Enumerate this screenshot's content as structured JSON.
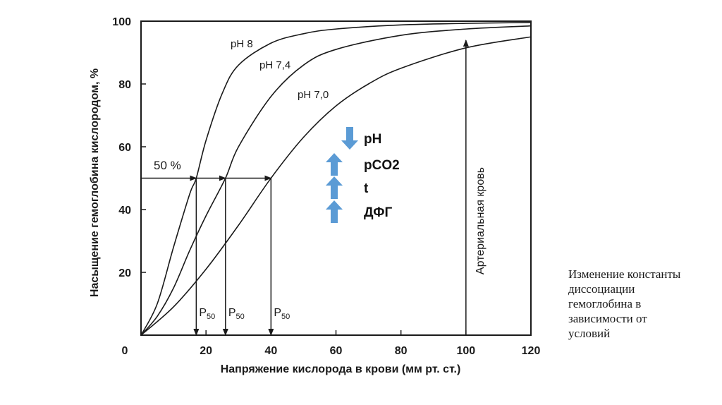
{
  "caption": "Изменение константы\nдиссоциации\nгемоглобина в\nзависимости от\nусловий",
  "annotations": {
    "fifty_percent": "50 %",
    "p50_main": "P",
    "p50_sub": "50",
    "arterial_blood": "Артериальная кровь"
  },
  "factors": [
    {
      "label": "pH",
      "arrow": "down",
      "arrow_icon": "arrow-down-icon"
    },
    {
      "label": "pCO2",
      "arrow": "up",
      "arrow_icon": "arrow-up-icon"
    },
    {
      "label": "t",
      "arrow": "up",
      "arrow_icon": "arrow-up-icon"
    },
    {
      "label": "ДФГ",
      "arrow": "up",
      "arrow_icon": "arrow-up-icon"
    }
  ],
  "colors": {
    "line": "#1a1a1a",
    "factor_arrow": "#5b9bd5",
    "background": "#ffffff"
  },
  "chart_data": {
    "type": "line",
    "xlabel": "Напряжение кислорода в крови (мм рт. ст.)",
    "ylabel": "Насыщение гемоглобина кислородом, %",
    "xlim": [
      0,
      120
    ],
    "ylim": [
      0,
      100
    ],
    "x_ticks": [
      "0",
      "20",
      "40",
      "60",
      "80",
      "100",
      "120"
    ],
    "y_ticks": [
      "100",
      "80",
      "60",
      "40",
      "20"
    ],
    "grid": false,
    "series": [
      {
        "name": "pH 8",
        "p50": 17,
        "x": [
          0,
          5,
          10,
          15,
          17,
          20,
          25,
          30,
          40,
          50,
          60,
          80,
          100,
          120
        ],
        "y": [
          0,
          10,
          28,
          45,
          50,
          62,
          77,
          86,
          93,
          96,
          97.5,
          98.8,
          99.3,
          99.6
        ]
      },
      {
        "name": "pH 7,4",
        "p50": 26,
        "x": [
          0,
          5,
          10,
          15,
          20,
          26,
          30,
          40,
          50,
          60,
          80,
          100,
          120
        ],
        "y": [
          0,
          6,
          15,
          27,
          38,
          50,
          60,
          76,
          86,
          91,
          95.5,
          97.5,
          98.5
        ]
      },
      {
        "name": "pH 7,0",
        "p50": 40,
        "x": [
          0,
          10,
          20,
          30,
          40,
          50,
          60,
          70,
          80,
          100,
          120
        ],
        "y": [
          0,
          9,
          21,
          35,
          50,
          63,
          73,
          80,
          85,
          91.5,
          95
        ]
      }
    ],
    "reference_line": {
      "label": "Артериальная кровь",
      "x": 100
    }
  }
}
